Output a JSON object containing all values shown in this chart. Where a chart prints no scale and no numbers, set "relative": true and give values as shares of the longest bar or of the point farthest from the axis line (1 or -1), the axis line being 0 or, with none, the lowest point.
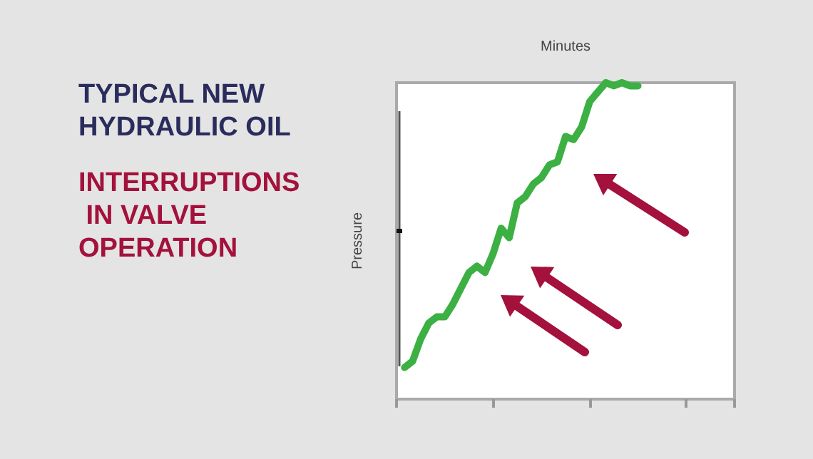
{
  "chart_data": {
    "type": "line",
    "title": "TYPICAL NEW HYDRAULIC OIL",
    "subtitle": "INTERRUPTIONS IN VALVE OPERATION",
    "xlabel": "Minutes",
    "ylabel": "Pressure",
    "relative": true,
    "categories": [
      null,
      null,
      null,
      null,
      null,
      null,
      null,
      null,
      null,
      null,
      null,
      null,
      null,
      null,
      null,
      null,
      null,
      null,
      null,
      null,
      null,
      null,
      null,
      null,
      null,
      null,
      null,
      null,
      null,
      null,
      null,
      null,
      null,
      null,
      null,
      null,
      null,
      null,
      null,
      null,
      null,
      null,
      null
    ],
    "series": [
      {
        "color": "#3cb043",
        "values": [
          null,
          0.1,
          0.12,
          0.19,
          0.24,
          0.26,
          0.26,
          0.3,
          0.35,
          0.4,
          0.42,
          0.4,
          0.46,
          0.54,
          0.51,
          0.62,
          0.64,
          0.68,
          0.7,
          0.74,
          0.75,
          0.83,
          0.82,
          0.86,
          0.94,
          0.97,
          1.0,
          0.99,
          1.0,
          0.99,
          0.99,
          null,
          null,
          null,
          null,
          null,
          null,
          null,
          null,
          null,
          null,
          null,
          null
        ]
      }
    ]
  }
}
